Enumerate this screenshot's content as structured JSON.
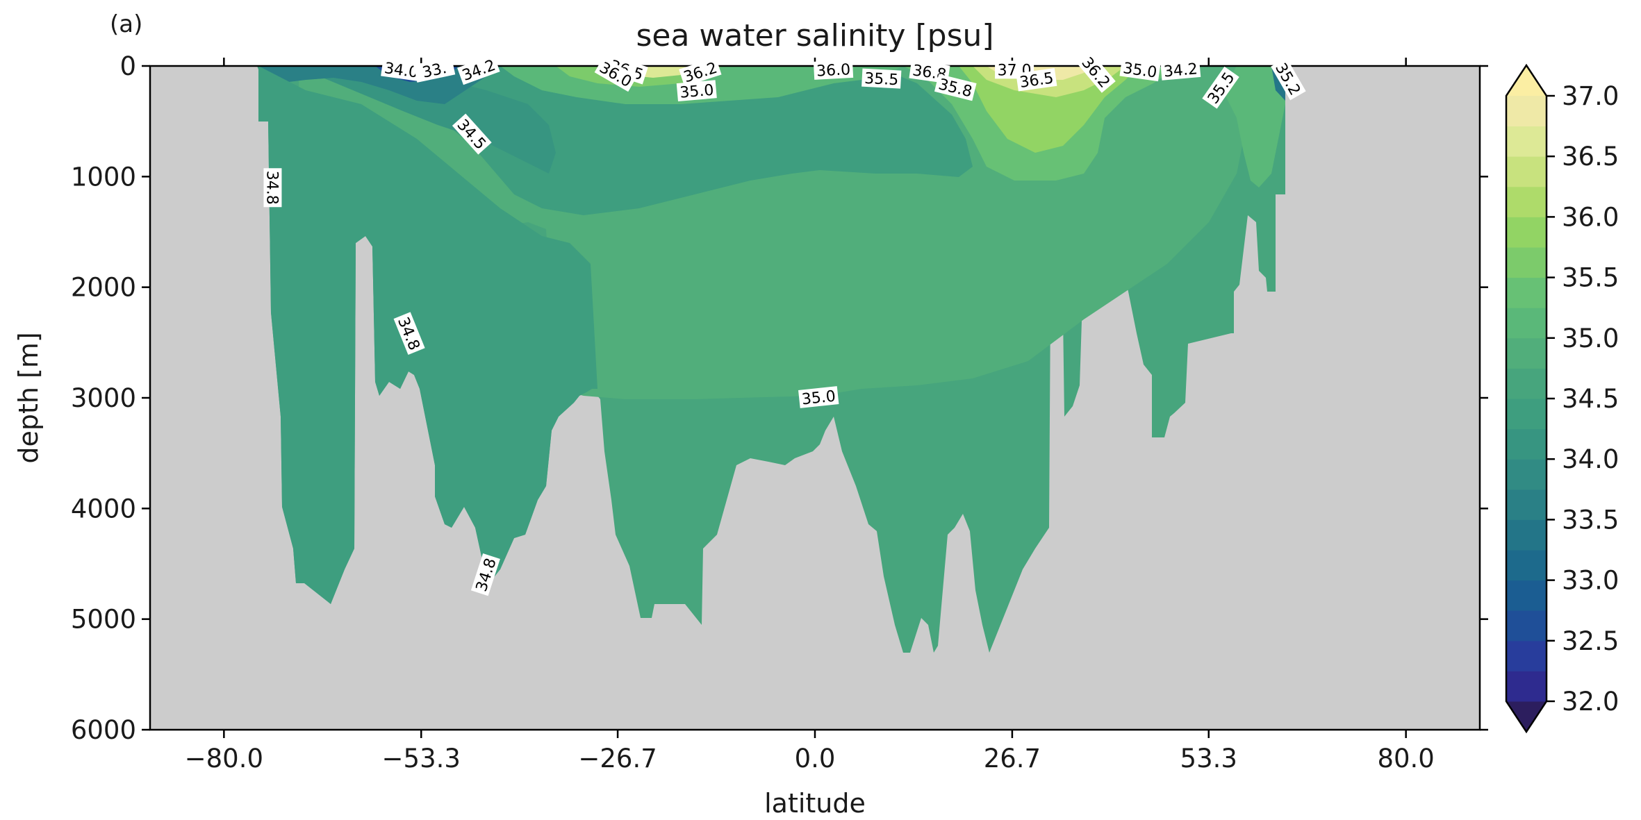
{
  "panel_label": "(a)",
  "chart_data": {
    "type": "heatmap",
    "title": "sea water salinity [psu]",
    "xlabel": "latitude",
    "ylabel": "depth [m]",
    "xlim": [
      -90,
      90
    ],
    "ylim": [
      6000,
      0
    ],
    "y_inverted": true,
    "x_ticks": [
      -80.0,
      -53.3,
      -26.7,
      0.0,
      26.7,
      53.3,
      80.0
    ],
    "x_tick_labels": [
      "−80.0",
      "−53.3",
      "−26.7",
      "0.0",
      "26.7",
      "53.3",
      "80.0"
    ],
    "y_ticks": [
      0,
      1000,
      2000,
      3000,
      4000,
      5000,
      6000
    ],
    "y_tick_labels": [
      "0",
      "1000",
      "2000",
      "3000",
      "4000",
      "5000",
      "6000"
    ],
    "colorbar": {
      "min": 32.0,
      "max": 37.0,
      "step": 0.25,
      "extend": "both",
      "ticks": [
        32.0,
        32.5,
        33.0,
        33.5,
        34.0,
        34.5,
        35.0,
        35.5,
        36.0,
        36.5,
        37.0
      ],
      "tick_labels": [
        "32.0",
        "32.5",
        "33.0",
        "33.5",
        "34.0",
        "34.5",
        "35.0",
        "35.5",
        "36.0",
        "36.5",
        "37.0"
      ],
      "colors": [
        "#2c1e5e",
        "#2e2b8f",
        "#283d9c",
        "#1f4f98",
        "#1b5d92",
        "#1d6a8c",
        "#237588",
        "#2a8086",
        "#318b84",
        "#379581",
        "#3e9e7f",
        "#47a57d",
        "#51ae7b",
        "#5ab879",
        "#67c175",
        "#7ccb6b",
        "#92d464",
        "#aedb6a",
        "#c8e27e",
        "#dde996",
        "#efe9a7",
        "#fbeea3"
      ]
    },
    "land_color": "#cccccc",
    "contour_labels": [
      {
        "text": "34.0",
        "lat": -56.0,
        "depth": 40,
        "rotation": 8
      },
      {
        "text": "33.",
        "lat": -51.5,
        "depth": 40,
        "rotation": -12
      },
      {
        "text": "34.2",
        "lat": -45.5,
        "depth": 40,
        "rotation": -20
      },
      {
        "text": "34.5",
        "lat": -46.5,
        "depth": 620,
        "rotation": 48
      },
      {
        "text": "34.8",
        "lat": -73.5,
        "depth": 1100,
        "rotation": 90
      },
      {
        "text": "34.8",
        "lat": -55.0,
        "depth": 2420,
        "rotation": 68
      },
      {
        "text": "34.8",
        "lat": -44.5,
        "depth": 4600,
        "rotation": -72
      },
      {
        "text": "36.5",
        "lat": -25.5,
        "depth": 40,
        "rotation": 18
      },
      {
        "text": "36.0",
        "lat": -27.0,
        "depth": 80,
        "rotation": 30
      },
      {
        "text": "36.2",
        "lat": -15.5,
        "depth": 60,
        "rotation": -18
      },
      {
        "text": "35.0",
        "lat": -16.0,
        "depth": 230,
        "rotation": -5
      },
      {
        "text": "36.0",
        "lat": 2.5,
        "depth": 40,
        "rotation": -3
      },
      {
        "text": "35.5",
        "lat": 9.0,
        "depth": 120,
        "rotation": 3
      },
      {
        "text": "36.8",
        "lat": 15.5,
        "depth": 60,
        "rotation": 8
      },
      {
        "text": "35.8",
        "lat": 19.0,
        "depth": 200,
        "rotation": 14
      },
      {
        "text": "37.0",
        "lat": 27.0,
        "depth": 40,
        "rotation": 0
      },
      {
        "text": "36.5",
        "lat": 30.0,
        "depth": 130,
        "rotation": -8
      },
      {
        "text": "36.2",
        "lat": 38.0,
        "depth": 60,
        "rotation": 50
      },
      {
        "text": "35.0",
        "lat": 44.0,
        "depth": 40,
        "rotation": 8
      },
      {
        "text": "34.2",
        "lat": 49.5,
        "depth": 40,
        "rotation": -5
      },
      {
        "text": "35.5",
        "lat": 55.0,
        "depth": 200,
        "rotation": -55
      },
      {
        "text": "35.2",
        "lat": 64.0,
        "depth": 120,
        "rotation": 60
      },
      {
        "text": "35.0",
        "lat": 0.5,
        "depth": 3000,
        "rotation": -6
      }
    ]
  }
}
